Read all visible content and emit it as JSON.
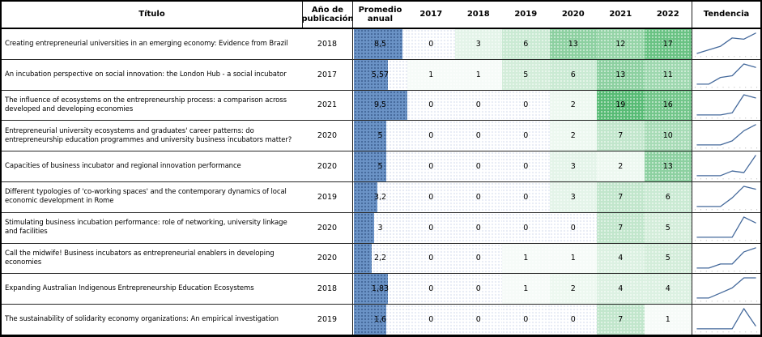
{
  "table": {
    "header": {
      "columns": [
        "Título",
        "Año de publicación",
        "Promedio anual",
        "2017",
        "2018",
        "2019",
        "2020",
        "2021",
        "2022",
        "Tendencia"
      ]
    },
    "rows": [
      {
        "title": "Creating entrepreneurial universities in an emerging economy: Evidence from Brazil",
        "year": "2018",
        "avg": "8,5",
        "bar": 0.89,
        "values": [
          0,
          3,
          6,
          13,
          12,
          17
        ]
      },
      {
        "title": "An incubation perspective on social innovation: the London Hub - a social incubator",
        "year": "2017",
        "avg": "5,57",
        "bar": 0.63,
        "values": [
          1,
          1,
          5,
          6,
          13,
          11
        ]
      },
      {
        "title": "The influence of ecosystems on the entrepreneurship process: a comparison across developed and developing economies",
        "year": "2021",
        "avg": "9,5",
        "bar": 1.0,
        "values": [
          0,
          0,
          0,
          2,
          19,
          16
        ]
      },
      {
        "title": "Entrepreneurial university ecosystems and graduates' career patterns: do entrepreneurship education programmes and university business incubators matter?",
        "year": "2020",
        "avg": "5",
        "bar": 0.6,
        "values": [
          0,
          0,
          0,
          2,
          7,
          10
        ]
      },
      {
        "title": "Capacities of business incubator and regional innovation performance",
        "year": "2020",
        "avg": "5",
        "bar": 0.6,
        "values": [
          0,
          0,
          0,
          3,
          2,
          13
        ]
      },
      {
        "title": "Different typologies of 'co-working spaces' and the contemporary dynamics of local economic development in Rome",
        "year": "2019",
        "avg": "3,2",
        "bar": 0.43,
        "values": [
          0,
          0,
          0,
          3,
          7,
          6
        ]
      },
      {
        "title": "Stimulating business incubation performance: role of networking, university linkage and facilities",
        "year": "2020",
        "avg": "3",
        "bar": 0.38,
        "values": [
          0,
          0,
          0,
          0,
          7,
          5
        ]
      },
      {
        "title": "Call the midwife! Business incubators as entrepreneurial enablers in developing economies",
        "year": "2020",
        "avg": "2,2",
        "bar": 0.33,
        "values": [
          0,
          0,
          1,
          1,
          4,
          5
        ]
      },
      {
        "title": "Expanding Australian Indigenous Entrepreneurship Education Ecosystems",
        "year": "2018",
        "avg": "1,83",
        "bar": 0.63,
        "values": [
          0,
          0,
          1,
          2,
          4,
          4
        ]
      },
      {
        "title": "The sustainability of solidarity economy organizations: An empirical investigation",
        "year": "2019",
        "avg": "1,6",
        "bar": 0.6,
        "values": [
          0,
          0,
          0,
          0,
          7,
          1
        ]
      }
    ],
    "color_scale": {
      "min_color": "#FFFFFF",
      "max_color": "#57BB74",
      "max_value": 19
    },
    "data_bar_color": "#6B93C6",
    "sparkline_color": "#44699B",
    "sparkline_axis_color": "#AAAAAA"
  }
}
